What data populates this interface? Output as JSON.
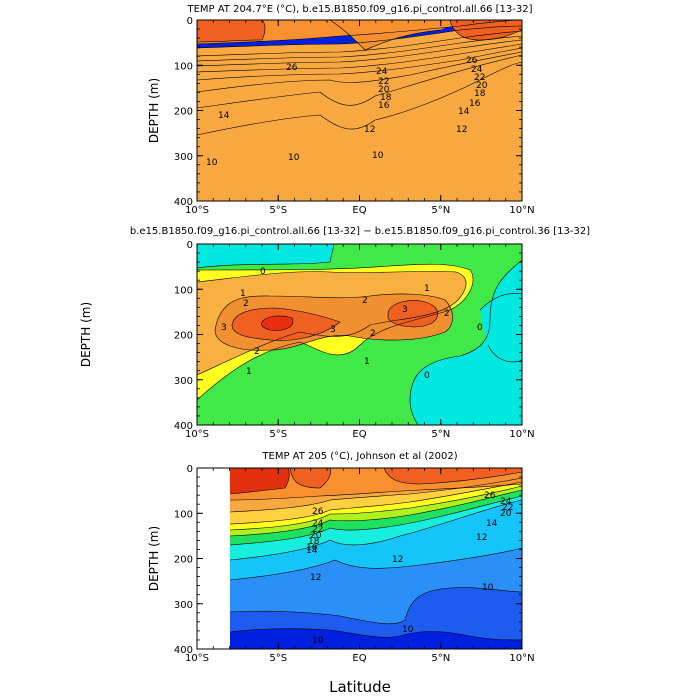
{
  "figure_xlabel": "Latitude",
  "colors": {
    "temp_levels": [
      "#0020e0",
      "#1e5cf0",
      "#2a90f8",
      "#15c4f8",
      "#18eee0",
      "#20e060",
      "#b0f020",
      "#ffff20",
      "#ffd040",
      "#f8a840",
      "#f89030",
      "#f06020",
      "#e03010"
    ],
    "diff_levels": [
      "#00e8e0",
      "#40e848",
      "#ffff20",
      "#f8b040",
      "#f09030",
      "#f06020",
      "#e83010"
    ]
  },
  "chart_data": [
    {
      "id": "model",
      "type": "contour",
      "title": "TEMP AT 204.7°E (°C), b.e15.B1850.f09_g16.pi_control.all.66 [13-32]",
      "xlabel": "",
      "ylabel": "DEPTH (m)",
      "xlim": [
        -10,
        10
      ],
      "ylim": [
        400,
        0
      ],
      "xticks": [
        "10°S",
        "5°S",
        "EQ",
        "5°N",
        "10°N"
      ],
      "yticks": [
        "0",
        "100",
        "200",
        "300",
        "400"
      ],
      "contour_levels": [
        10,
        12,
        14,
        16,
        18,
        20,
        22,
        24,
        26
      ],
      "contour_labels": [
        "26",
        "24",
        "22",
        "20",
        "18",
        "16",
        "14",
        "12",
        "10",
        "26",
        "24",
        "22",
        "20",
        "18",
        "16",
        "14",
        "12",
        "10",
        "10"
      ]
    },
    {
      "id": "difference",
      "type": "contour",
      "title": "b.e15.B1850.f09_g16.pi_control.all.66 [13-32] − b.e15.B1850.f09_g16.pi_control.36 [13-32]",
      "xlabel": "",
      "ylabel": "DEPTH (m)",
      "xlim": [
        -10,
        10
      ],
      "ylim": [
        400,
        0
      ],
      "xticks": [
        "10°S",
        "5°S",
        "EQ",
        "5°N",
        "10°N"
      ],
      "yticks": [
        "0",
        "100",
        "200",
        "300",
        "400"
      ],
      "contour_levels": [
        0,
        1,
        2,
        3
      ],
      "contour_labels": [
        "0",
        "1",
        "2",
        "3",
        "3",
        "2",
        "2",
        "1",
        "2",
        "3",
        "2",
        "1",
        "1",
        "0",
        "0"
      ]
    },
    {
      "id": "observed",
      "type": "contour",
      "title": "TEMP AT 205 (°C), Johnson et al (2002)",
      "xlabel": "Latitude",
      "ylabel": "DEPTH (m)",
      "xlim": [
        -10,
        10
      ],
      "ylim": [
        400,
        0
      ],
      "data_xrange": [
        -8,
        10
      ],
      "xticks": [
        "10°S",
        "5°S",
        "EQ",
        "5°N",
        "10°N"
      ],
      "yticks": [
        "0",
        "100",
        "200",
        "300",
        "400"
      ],
      "contour_levels": [
        10,
        12,
        14,
        16,
        18,
        20,
        22,
        24,
        26
      ],
      "contour_labels": [
        "26",
        "24",
        "22",
        "20",
        "18",
        "16",
        "14",
        "12",
        "12",
        "10",
        "26",
        "24",
        "22",
        "20",
        "14",
        "12",
        "10",
        "10"
      ]
    }
  ]
}
